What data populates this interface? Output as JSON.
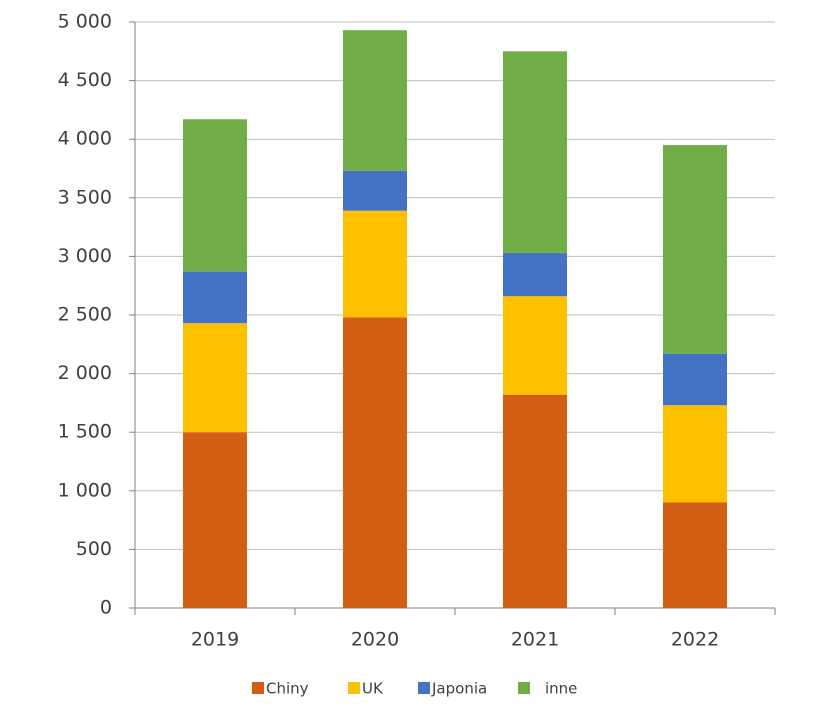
{
  "chart_data": {
    "type": "stacked-bar",
    "categories": [
      "2019",
      "2020",
      "2021",
      "2022"
    ],
    "series": [
      {
        "name": "Chiny",
        "color": "#d35f15",
        "values": [
          1500,
          2480,
          1820,
          900
        ]
      },
      {
        "name": "UK",
        "color": "#ffc000",
        "values": [
          930,
          910,
          840,
          830
        ]
      },
      {
        "name": "Japonia",
        "color": "#4472c4",
        "values": [
          440,
          340,
          370,
          440
        ]
      },
      {
        "name": "inne",
        "color": "#70ad47",
        "values": [
          1300,
          1200,
          1720,
          1780
        ]
      }
    ],
    "ylim": [
      0,
      5000
    ],
    "yticks": [
      0,
      500,
      {
        "value": 1000,
        "label": "1 000"
      },
      {
        "value": 1500,
        "label": "1 500"
      },
      {
        "value": 2000,
        "label": "2 000"
      },
      {
        "value": 2500,
        "label": "2 500"
      },
      {
        "value": 3000,
        "label": "3 000"
      },
      {
        "value": 3500,
        "label": "3 500"
      },
      {
        "value": 4000,
        "label": "4 000"
      },
      {
        "value": 4500,
        "label": "4 500"
      },
      {
        "value": 5000,
        "label": "5 000"
      }
    ],
    "grid": true,
    "legend": "bottom"
  }
}
